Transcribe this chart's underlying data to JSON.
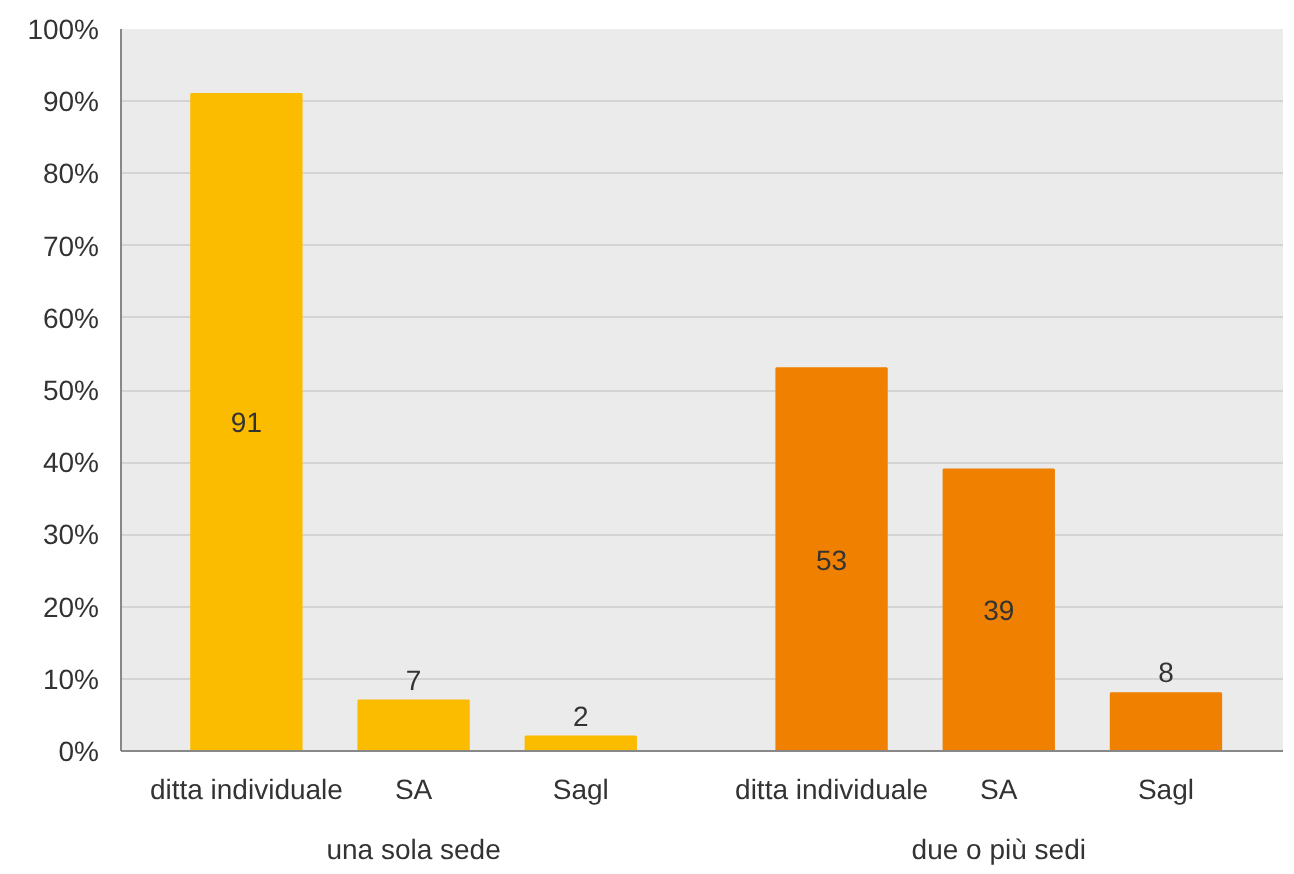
{
  "chart_data": {
    "type": "bar",
    "categories": [
      "ditta individuale",
      "SA",
      "Sagl",
      "ditta individuale",
      "SA",
      "Sagl"
    ],
    "values": [
      91,
      7,
      2,
      53,
      39,
      8
    ],
    "colors": [
      "#fbbc00",
      "#fbbc00",
      "#fbbc00",
      "#f08000",
      "#f08000",
      "#f08000"
    ],
    "data_labels": true,
    "annotations": [
      "una sola sede",
      "due o più sedi"
    ],
    "ylim": [
      0,
      100
    ],
    "yticks": [
      {
        "value": 0,
        "label": "0%"
      },
      {
        "value": 10,
        "label": "10%"
      },
      {
        "value": 20,
        "label": "20%"
      },
      {
        "value": 30,
        "label": "30%"
      },
      {
        "value": 40,
        "label": "40%"
      },
      {
        "value": 50,
        "label": "50%"
      },
      {
        "value": 60,
        "label": "60%"
      },
      {
        "value": 70,
        "label": "70%"
      },
      {
        "value": 80,
        "label": "80%"
      },
      {
        "value": 90,
        "label": "90%"
      },
      {
        "value": 100,
        "label": "100%"
      }
    ],
    "grid": "y"
  }
}
